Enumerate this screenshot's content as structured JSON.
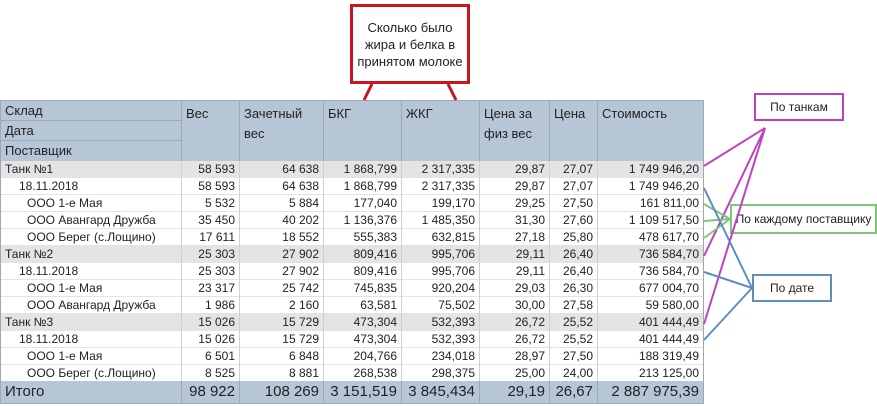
{
  "callouts": {
    "fat_protein": "Сколько было жира и белка в принятом молоке",
    "by_tank": "По танкам",
    "by_supplier": "По каждому поставщику",
    "by_date": "По дате"
  },
  "header": {
    "row_labels": [
      "Склад",
      "Дата",
      "Поставщик"
    ],
    "columns": [
      "Вес",
      "Зачетный вес",
      "БКГ",
      "ЖКГ",
      "Цена за физ вес",
      "Цена",
      "Стоимость"
    ]
  },
  "rows": [
    {
      "level": 0,
      "label": "Танк №1",
      "values": [
        "58 593",
        "64 638",
        "1 868,799",
        "2 317,335",
        "29,87",
        "27,07",
        "1 749 946,20"
      ]
    },
    {
      "level": 1,
      "label": "18.11.2018",
      "values": [
        "58 593",
        "64 638",
        "1 868,799",
        "2 317,335",
        "29,87",
        "27,07",
        "1 749 946,20"
      ]
    },
    {
      "level": 2,
      "label": "ООО 1-е Мая",
      "values": [
        "5 532",
        "5 884",
        "177,040",
        "199,170",
        "29,25",
        "27,50",
        "161 811,00"
      ]
    },
    {
      "level": 2,
      "label": "ООО Авангард Дружба",
      "values": [
        "35 450",
        "40 202",
        "1 136,376",
        "1 485,350",
        "31,30",
        "27,60",
        "1 109 517,50"
      ]
    },
    {
      "level": 2,
      "label": "ООО Берег (с.Лощино)",
      "values": [
        "17 611",
        "18 552",
        "555,383",
        "632,815",
        "27,18",
        "25,80",
        "478 617,70"
      ]
    },
    {
      "level": 0,
      "label": "Танк №2",
      "values": [
        "25 303",
        "27 902",
        "809,416",
        "995,706",
        "29,11",
        "26,40",
        "736 584,70"
      ]
    },
    {
      "level": 1,
      "label": "18.11.2018",
      "values": [
        "25 303",
        "27 902",
        "809,416",
        "995,706",
        "29,11",
        "26,40",
        "736 584,70"
      ]
    },
    {
      "level": 2,
      "label": "ООО 1-е Мая",
      "values": [
        "23 317",
        "25 742",
        "745,835",
        "920,204",
        "29,03",
        "26,30",
        "677 004,70"
      ]
    },
    {
      "level": 2,
      "label": "ООО Авангард Дружба",
      "values": [
        "1 986",
        "2 160",
        "63,581",
        "75,502",
        "30,00",
        "27,58",
        "59 580,00"
      ]
    },
    {
      "level": 0,
      "label": "Танк №3",
      "values": [
        "15 026",
        "15 729",
        "473,304",
        "532,393",
        "26,72",
        "25,52",
        "401 444,49"
      ]
    },
    {
      "level": 1,
      "label": "18.11.2018",
      "values": [
        "15 026",
        "15 729",
        "473,304",
        "532,393",
        "26,72",
        "25,52",
        "401 444,49"
      ]
    },
    {
      "level": 2,
      "label": "ООО 1-е Мая",
      "values": [
        "6 501",
        "6 848",
        "204,766",
        "234,018",
        "28,97",
        "27,50",
        "188 319,49"
      ]
    },
    {
      "level": 2,
      "label": "ООО Берег (с.Лощино)",
      "values": [
        "8 525",
        "8 881",
        "268,538",
        "298,375",
        "25,00",
        "24,00",
        "213 125,00"
      ]
    }
  ],
  "total": {
    "label": "Итого",
    "values": [
      "98 922",
      "108 269",
      "3 151,519",
      "3 845,434",
      "29,19",
      "26,67",
      "2 887 975,39"
    ]
  }
}
